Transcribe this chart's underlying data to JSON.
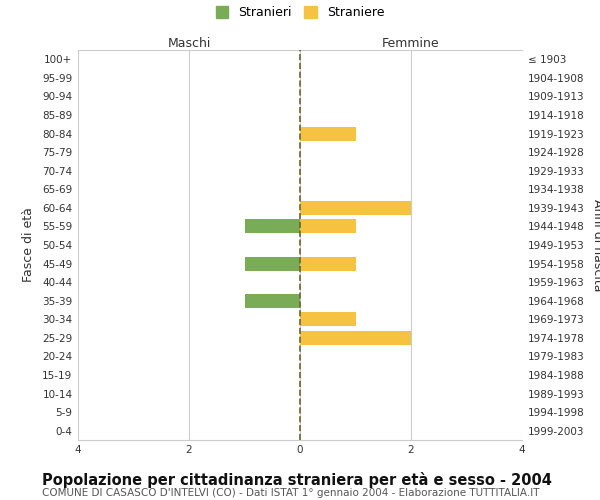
{
  "age_groups": [
    "100+",
    "95-99",
    "90-94",
    "85-89",
    "80-84",
    "75-79",
    "70-74",
    "65-69",
    "60-64",
    "55-59",
    "50-54",
    "45-49",
    "40-44",
    "35-39",
    "30-34",
    "25-29",
    "20-24",
    "15-19",
    "10-14",
    "5-9",
    "0-4"
  ],
  "anni_nascita": [
    "≤ 1903",
    "1904-1908",
    "1909-1913",
    "1914-1918",
    "1919-1923",
    "1924-1928",
    "1929-1933",
    "1934-1938",
    "1939-1943",
    "1944-1948",
    "1949-1953",
    "1954-1958",
    "1959-1963",
    "1964-1968",
    "1969-1973",
    "1974-1978",
    "1979-1983",
    "1984-1988",
    "1989-1993",
    "1994-1998",
    "1999-2003"
  ],
  "males": [
    0,
    0,
    0,
    0,
    0,
    0,
    0,
    0,
    0,
    -1,
    0,
    -1,
    0,
    -1,
    0,
    0,
    0,
    0,
    0,
    0,
    0
  ],
  "females": [
    0,
    0,
    0,
    0,
    1,
    0,
    0,
    0,
    2,
    1,
    0,
    1,
    0,
    0,
    1,
    2,
    0,
    0,
    0,
    0,
    0
  ],
  "male_color": "#7aab57",
  "female_color": "#f5c242",
  "background_color": "#ffffff",
  "grid_color": "#cccccc",
  "center_line_color": "#666633",
  "xlim": [
    -4,
    4
  ],
  "xticks": [
    -4,
    -2,
    0,
    2,
    4
  ],
  "title": "Popolazione per cittadinanza straniera per età e sesso - 2004",
  "subtitle": "COMUNE DI CASASCO D'INTELVI (CO) - Dati ISTAT 1° gennaio 2004 - Elaborazione TUTTITALIA.IT",
  "ylabel_left": "Fasce di età",
  "ylabel_right": "Anni di nascita",
  "maschi_label": "Maschi",
  "femmine_label": "Femmine",
  "legend_stranieri": "Stranieri",
  "legend_straniere": "Straniere",
  "title_fontsize": 10.5,
  "subtitle_fontsize": 7.5,
  "tick_fontsize": 7.5,
  "label_fontsize": 9,
  "bar_height": 0.75
}
